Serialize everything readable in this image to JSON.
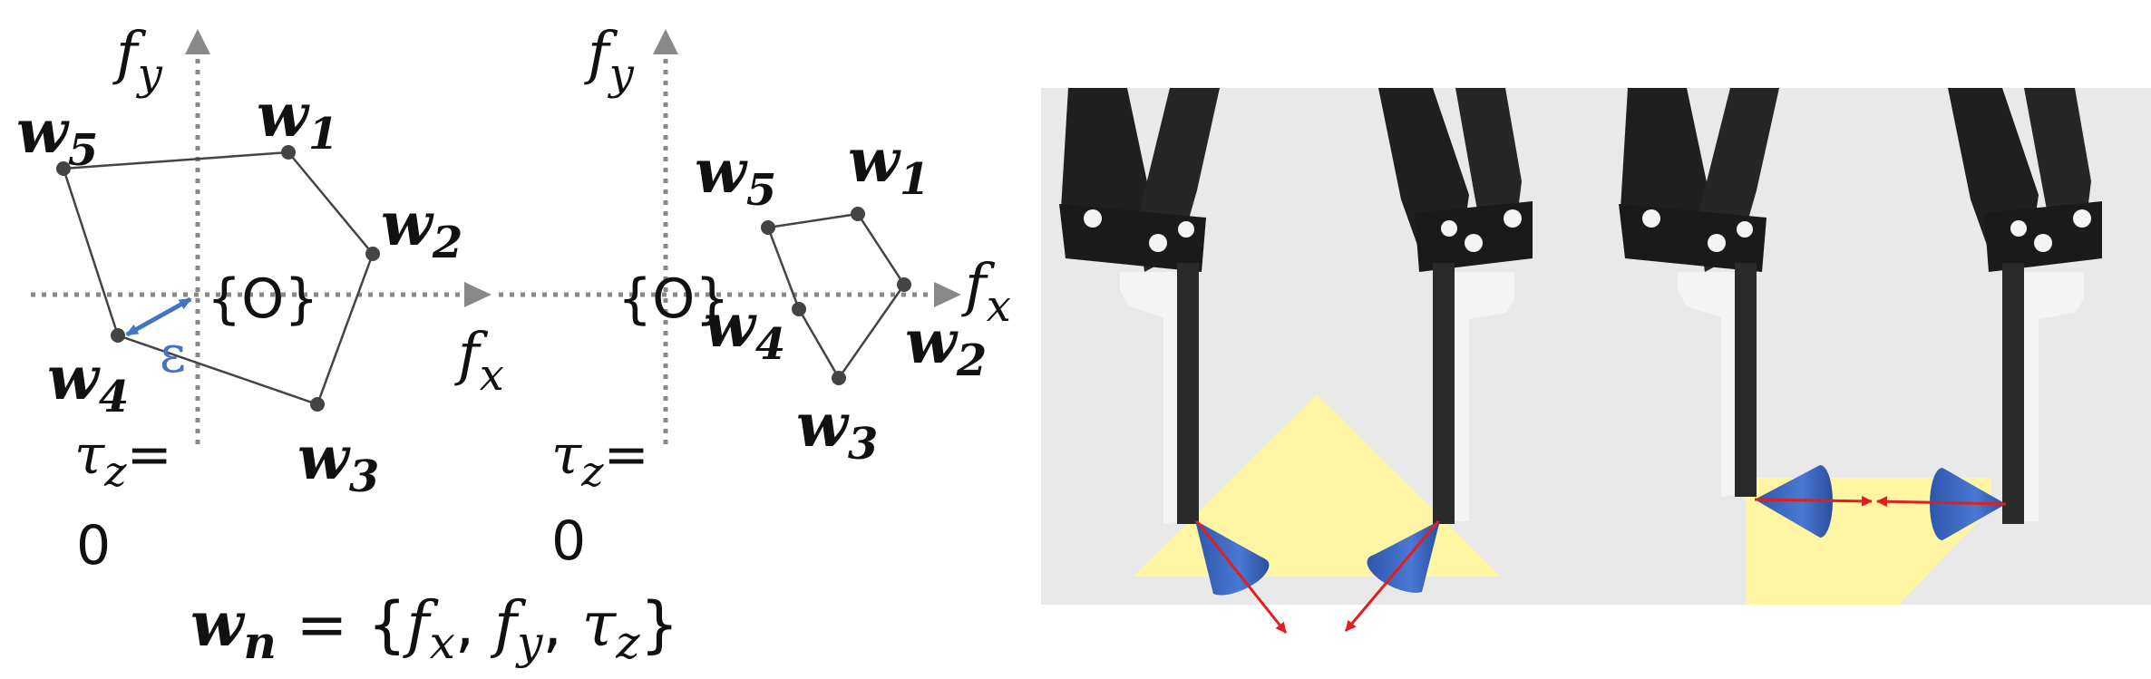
{
  "left_diagram": {
    "axis_fy": "f",
    "axis_fy_sub": "y",
    "axis_fx": "f",
    "axis_fx_sub": "x",
    "origin": "{O}",
    "epsilon": "ε",
    "tau": "τ",
    "tau_sub": "z",
    "tau_eq": "=",
    "tau_val": "0",
    "vertices": [
      {
        "name": "w",
        "sub": "5"
      },
      {
        "name": "w",
        "sub": "1"
      },
      {
        "name": "w",
        "sub": "2"
      },
      {
        "name": "w",
        "sub": "4"
      },
      {
        "name": "w",
        "sub": "3"
      }
    ]
  },
  "right_diagram": {
    "axis_fy": "f",
    "axis_fy_sub": "y",
    "axis_fx": "f",
    "axis_fx_sub": "x",
    "origin": "{O}",
    "tau": "τ",
    "tau_sub": "z",
    "tau_eq": "=",
    "tau_val": "0",
    "vertices": [
      {
        "name": "w",
        "sub": "5"
      },
      {
        "name": "w",
        "sub": "1"
      },
      {
        "name": "w",
        "sub": "4"
      },
      {
        "name": "w",
        "sub": "2"
      },
      {
        "name": "w",
        "sub": "3"
      }
    ]
  },
  "formula": {
    "lhs": "w",
    "lhs_sub": "n",
    "rhs_prefix": " = {",
    "f1": "f",
    "f1_sub": "x",
    "sep1": ", ",
    "f2": "f",
    "f2_sub": "y",
    "sep2": ", ",
    "f3": "τ",
    "f3_sub": "z",
    "rhs_suffix": "}"
  },
  "colors": {
    "axis": "#888888",
    "edge": "#444444",
    "vertex": "#444444",
    "epsilon": "#4472c4",
    "gripper": "#1f1f1f",
    "finger_pad": "#f2f2f2",
    "panel_bg": "#e9e9e9",
    "object_fill": "#fff5a3",
    "cone": "#3f6bc4",
    "force": "#e21f1f"
  }
}
